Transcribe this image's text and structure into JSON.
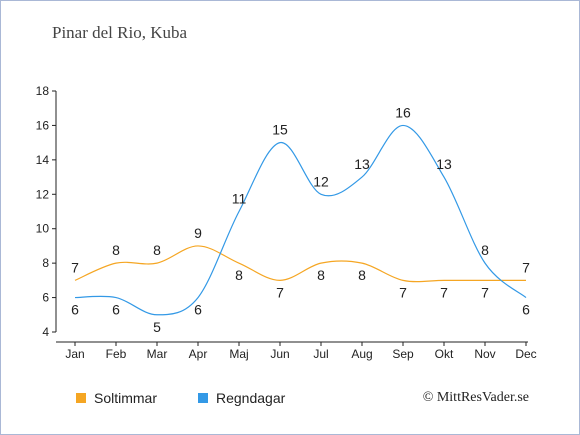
{
  "title": "Pinar del Rio, Kuba",
  "credit": "© MittResVader.se",
  "chart_data": {
    "type": "line",
    "categories": [
      "Jan",
      "Feb",
      "Mar",
      "Apr",
      "Maj",
      "Jun",
      "Jul",
      "Aug",
      "Sep",
      "Okt",
      "Nov",
      "Dec"
    ],
    "ylim": [
      4,
      18
    ],
    "yticks": [
      4,
      6,
      8,
      10,
      12,
      14,
      16,
      18
    ],
    "grid": false,
    "legend_position": "bottom-left",
    "series": [
      {
        "name": "Soltimmar",
        "color": "#f5a623",
        "values": [
          7,
          8,
          8,
          9,
          8,
          7,
          8,
          8,
          7,
          7,
          7,
          7
        ]
      },
      {
        "name": "Regndagar",
        "color": "#3399e6",
        "values": [
          6,
          6,
          5,
          6,
          11,
          15,
          12,
          13,
          16,
          13,
          8,
          6
        ]
      }
    ]
  }
}
